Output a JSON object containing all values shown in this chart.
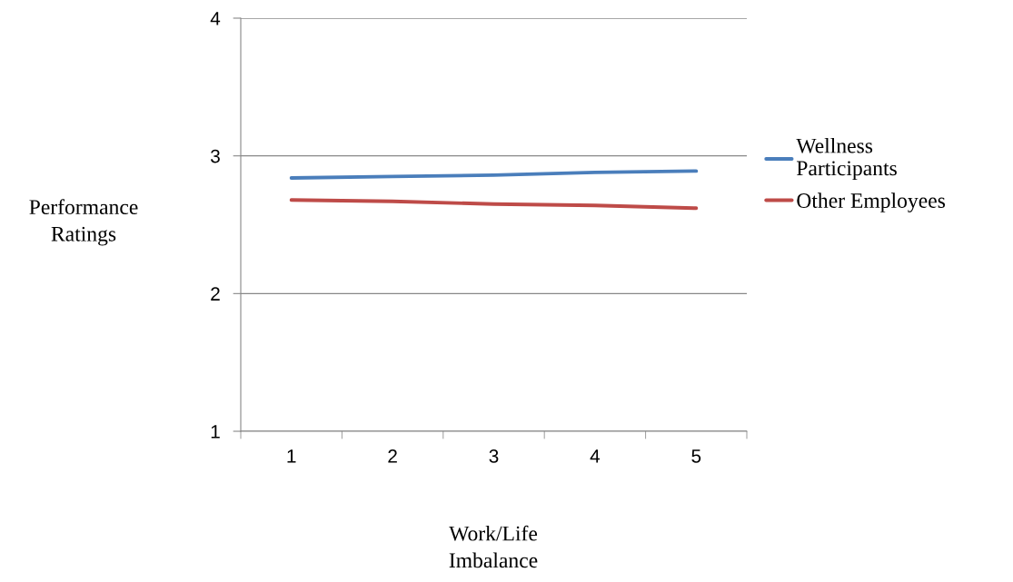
{
  "chart_data": {
    "type": "line",
    "xlabel": "Work/Life\nImbalance",
    "ylabel": "Performance\nRatings",
    "categories": [
      "1",
      "2",
      "3",
      "4",
      "5"
    ],
    "series": [
      {
        "name": "Wellness\nParticipants",
        "color": "#4a7ebb",
        "values": [
          2.84,
          2.85,
          2.86,
          2.88,
          2.89
        ]
      },
      {
        "name": "Other Employees",
        "color": "#be4b48",
        "values": [
          2.68,
          2.67,
          2.65,
          2.64,
          2.62
        ]
      }
    ],
    "ylim": [
      1,
      4
    ],
    "yticks": [
      1,
      2,
      3,
      4
    ],
    "grid": "y",
    "legend": "right",
    "marker": "none",
    "line_style": "solid"
  }
}
